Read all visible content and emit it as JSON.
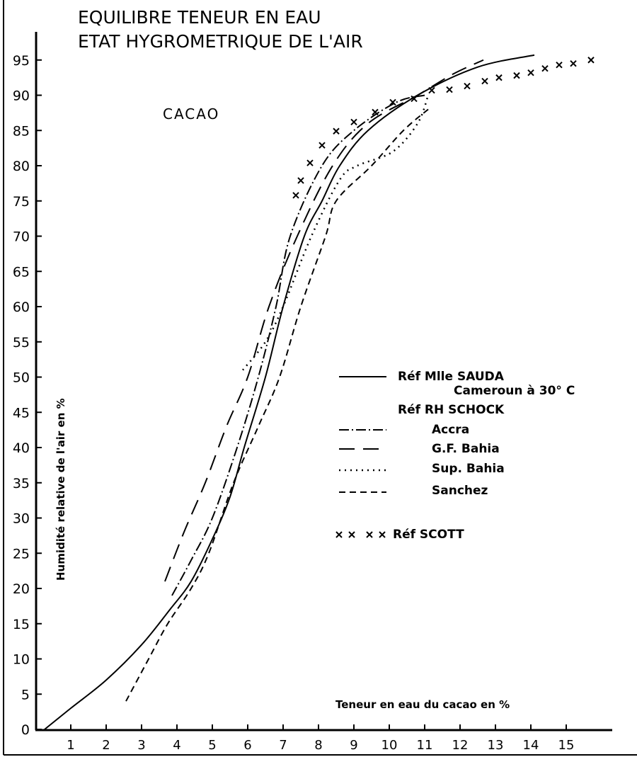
{
  "chart_data": {
    "type": "line",
    "title": [
      "EQUILIBRE TENEUR EN EAU",
      "ETAT HYGROMETRIQUE DE L'AIR"
    ],
    "annotation": "CACAO",
    "xlabel": "Teneur en eau du cacao en %",
    "ylabel": "Humidité relative de l'air en %",
    "xlim": [
      0,
      16.3
    ],
    "ylim": [
      0,
      99
    ],
    "xticks": [
      1,
      2,
      3,
      4,
      5,
      6,
      7,
      8,
      9,
      10,
      11,
      12,
      13,
      14,
      15
    ],
    "yticks": [
      0,
      5,
      10,
      15,
      20,
      25,
      30,
      35,
      40,
      45,
      50,
      55,
      60,
      65,
      70,
      75,
      80,
      85,
      90,
      95
    ],
    "grid": false,
    "legend_position": "right-center",
    "legend_headers": [
      "Réf RH SCHOCK"
    ],
    "series": [
      {
        "name": "Réf Mlle SAUDA",
        "subtitle": "Cameroun à 30° C",
        "style": "solid",
        "points": [
          [
            0.26,
            0
          ],
          [
            1,
            3
          ],
          [
            2,
            7
          ],
          [
            3,
            12
          ],
          [
            3.8,
            17
          ],
          [
            4.4,
            21
          ],
          [
            5,
            27
          ],
          [
            5.5,
            33
          ],
          [
            5.9,
            40
          ],
          [
            6.5,
            50
          ],
          [
            7,
            60
          ],
          [
            7.6,
            70
          ],
          [
            8.1,
            75
          ],
          [
            8.6,
            80
          ],
          [
            9.4,
            85
          ],
          [
            10.8,
            90
          ],
          [
            12.5,
            94
          ],
          [
            14.1,
            95.7
          ]
        ]
      },
      {
        "name": "Accra",
        "style": "dashdot",
        "points": [
          [
            3.86,
            19
          ],
          [
            4.4,
            24
          ],
          [
            5,
            30
          ],
          [
            5.7,
            40
          ],
          [
            6.3,
            50
          ],
          [
            6.8,
            60
          ],
          [
            7.2,
            70
          ],
          [
            8.1,
            80
          ],
          [
            9,
            85
          ],
          [
            10.2,
            89
          ],
          [
            11,
            90
          ]
        ]
      },
      {
        "name": "G.F. Bahia",
        "style": "longdash",
        "points": [
          [
            3.66,
            21
          ],
          [
            4.2,
            28
          ],
          [
            4.8,
            35
          ],
          [
            5.4,
            43
          ],
          [
            6,
            50
          ],
          [
            6.6,
            60
          ],
          [
            7.4,
            70
          ],
          [
            8.4,
            80
          ],
          [
            9.4,
            86
          ],
          [
            10.8,
            90
          ],
          [
            11.8,
            93
          ],
          [
            12.66,
            95
          ]
        ]
      },
      {
        "name": "Sup. Bahia",
        "style": "dotted",
        "points": [
          [
            5.86,
            51
          ],
          [
            6.5,
            55
          ],
          [
            7,
            60
          ],
          [
            7.8,
            70
          ],
          [
            8.6,
            78
          ],
          [
            9.1,
            80
          ],
          [
            10.1,
            82
          ],
          [
            10.8,
            86
          ],
          [
            11.1,
            90
          ]
        ]
      },
      {
        "name": "Sanchez",
        "style": "shortdash",
        "points": [
          [
            2.56,
            4
          ],
          [
            3.2,
            10
          ],
          [
            3.74,
            15
          ],
          [
            4.4,
            20
          ],
          [
            4.9,
            25
          ],
          [
            5.6,
            35
          ],
          [
            6.3,
            43
          ],
          [
            6.9,
            50
          ],
          [
            7.5,
            60
          ],
          [
            8.2,
            70
          ],
          [
            8.5,
            75
          ],
          [
            9.5,
            80
          ],
          [
            10.4,
            85
          ],
          [
            11.1,
            88
          ]
        ]
      },
      {
        "name": "Réf SCOTT",
        "style": "crosses",
        "points": [
          [
            7.36,
            75.8
          ],
          [
            7.5,
            77.9
          ],
          [
            7.76,
            80.4
          ],
          [
            8.1,
            82.9
          ],
          [
            8.5,
            84.9
          ],
          [
            9,
            86.2
          ],
          [
            9.6,
            87.6
          ],
          [
            10.1,
            89
          ],
          [
            10.7,
            89.5
          ],
          [
            11.2,
            90.7
          ],
          [
            11.7,
            90.8
          ],
          [
            12.2,
            91.3
          ],
          [
            12.7,
            92
          ],
          [
            13.1,
            92.5
          ],
          [
            13.6,
            92.8
          ],
          [
            14,
            93.2
          ],
          [
            14.4,
            93.8
          ],
          [
            14.8,
            94.3
          ],
          [
            15.2,
            94.5
          ],
          [
            15.7,
            95
          ]
        ]
      }
    ]
  }
}
